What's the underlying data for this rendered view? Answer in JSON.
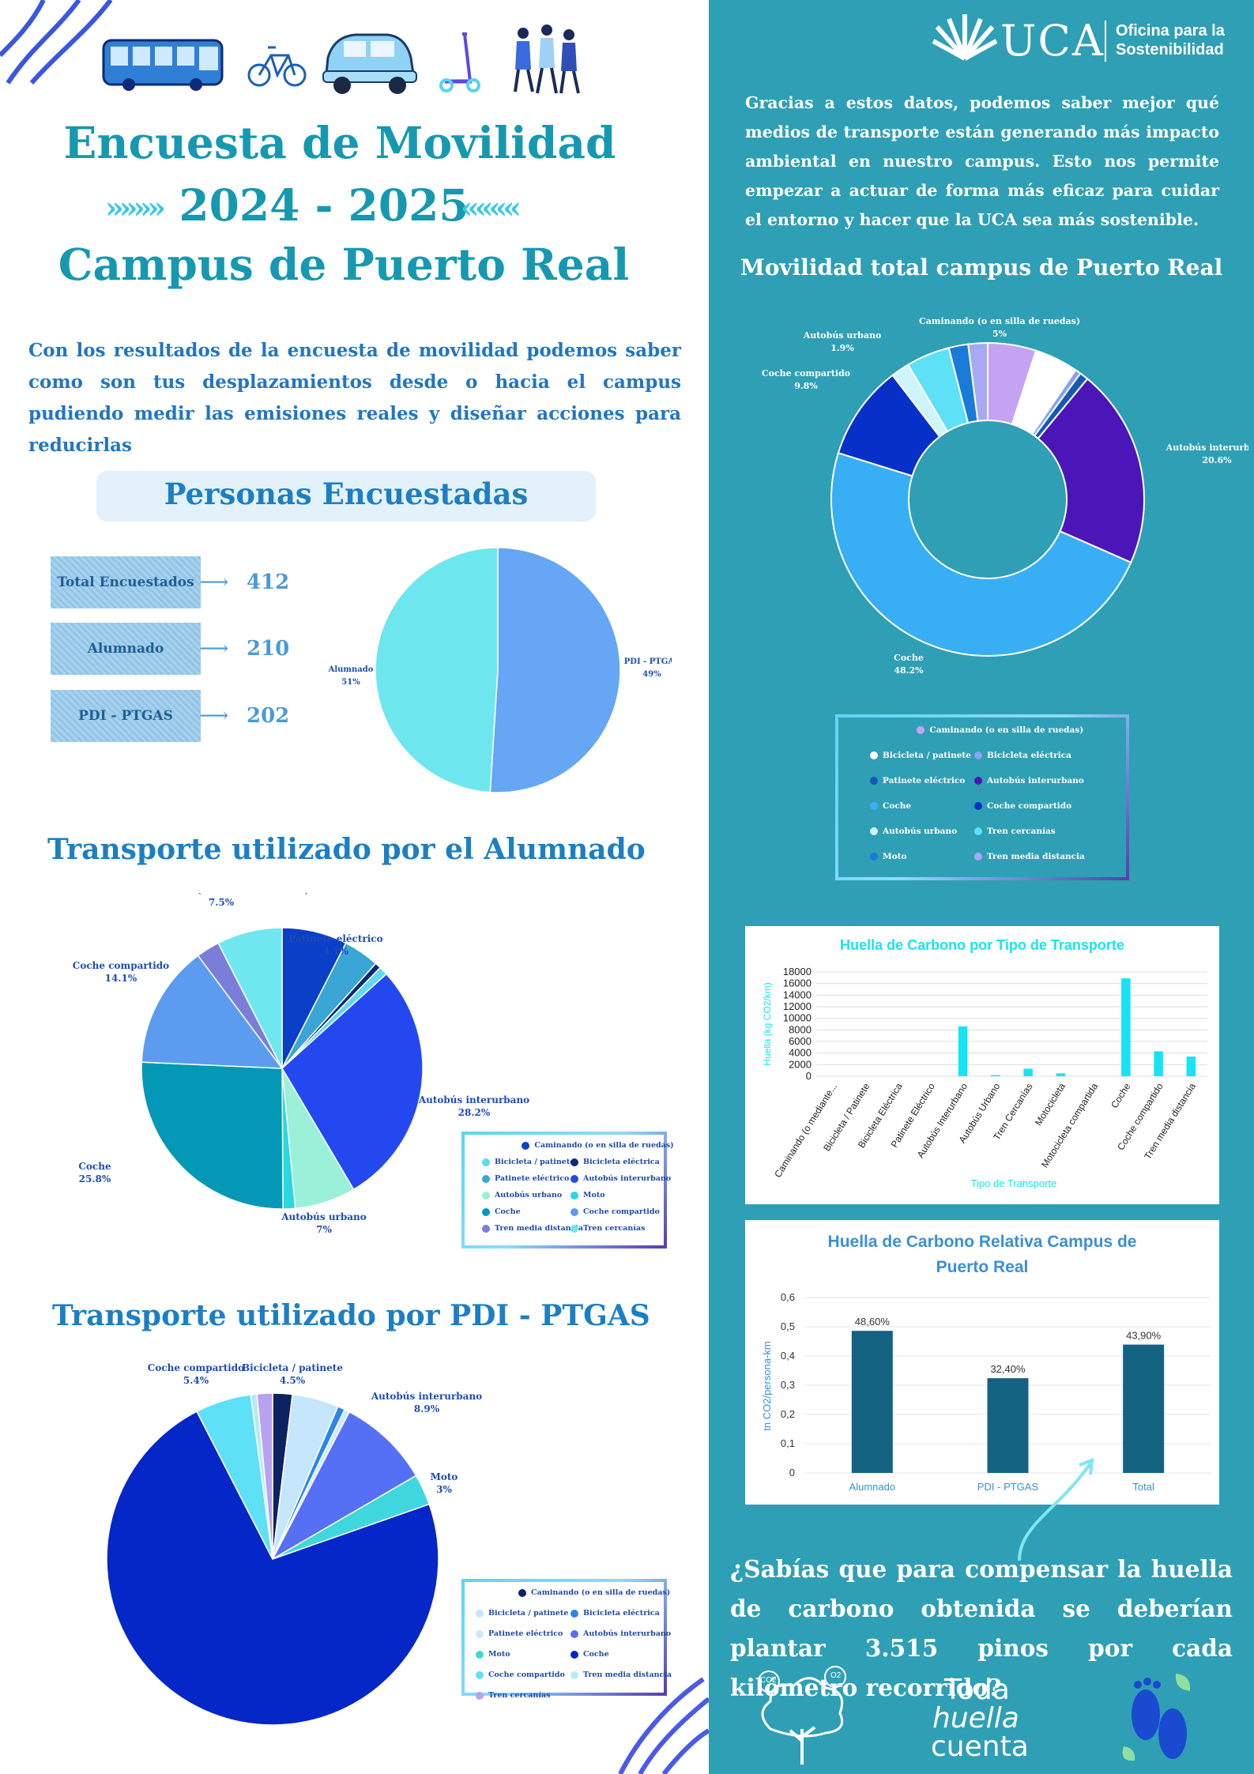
{
  "header": {
    "title_line1": "Encuesta de Movilidad",
    "title_line2": "2024 - 2025",
    "title_line3": "Campus de Puerto Real",
    "intro": "Con los resultados de la encuesta de movilidad podemos saber como son tus desplazamientos desde o hacia el campus pudiendo medir las emisiones reales y diseñar acciones para reducirlas",
    "icons": [
      "bus-icon",
      "bicycle-icon",
      "car-icon",
      "scooter-icon",
      "walking-people-icon"
    ]
  },
  "brand": {
    "logo_text": "UCA",
    "office_line1": "Oficina para la",
    "office_line2": "Sostenibilidad"
  },
  "right_intro": "Gracias a estos datos, podemos saber mejor qué medios de transporte están generando más impacto ambiental en nuestro campus. Esto nos permite empezar a actuar de forma más eficaz para cuidar el entorno y hacer que la UCA sea más sostenible.",
  "respondents": {
    "title": "Personas Encuestadas",
    "items": [
      {
        "label": "Total Encuestados",
        "value": "412"
      },
      {
        "label": "Alumnado",
        "value": "210"
      },
      {
        "label": "PDI - PTGAS",
        "value": "202"
      }
    ]
  },
  "sections": {
    "students_title": "Transporte utilizado por el Alumnado",
    "staff_title": "Transporte utilizado por PDI - PTGAS",
    "total_title": "Movilidad total campus de Puerto Real"
  },
  "closing": {
    "question": "¿Sabías que para compensar la huella de carbono obtenida se deberían plantar 3.515 pinos por cada kilómetro recorrido?",
    "slogan_line1": "Toda",
    "slogan_line2": "huella",
    "slogan_line3": "cuenta",
    "co2_label": "CO2",
    "o2_label": "O2"
  },
  "colors": {
    "right_bg": "#2f9fb5",
    "title_teal": "#1699b0",
    "heading_blue": "#1c7fc4"
  },
  "chart_data": [
    {
      "id": "respondents_pie",
      "type": "pie",
      "slices": [
        {
          "name": "Alumnado",
          "value": 51,
          "label": "51%",
          "color": "#66a6f5"
        },
        {
          "name": "PDI - PTGAS",
          "value": 49,
          "label": "49%",
          "color": "#6ee6ee"
        }
      ]
    },
    {
      "id": "students_pie",
      "type": "pie",
      "slices": [
        {
          "name": "Caminando (o en silla de ruedas)",
          "value": 7.5,
          "label": "7.5%",
          "color": "#0a3fc8",
          "labeled": true
        },
        {
          "name": "Patinete eléctrico",
          "value": 4.1,
          "label": "4.1%",
          "color": "#3aa6d6",
          "labeled": true
        },
        {
          "name": "Bicicleta eléctrica",
          "value": 0.7,
          "color": "#0d2a78"
        },
        {
          "name": "Bicicleta / patinete",
          "value": 1.0,
          "color": "#5fd8f5"
        },
        {
          "name": "Autobús interurbano",
          "value": 28.2,
          "label": "28.2%",
          "color": "#2448f0",
          "labeled": true
        },
        {
          "name": "Autobús urbano",
          "value": 7,
          "label": "7%",
          "color": "#9af0d8",
          "labeled": true
        },
        {
          "name": "Moto",
          "value": 1.4,
          "color": "#2ad8e0"
        },
        {
          "name": "Coche",
          "value": 25.8,
          "label": "25.8%",
          "color": "#0399b6",
          "labeled": true
        },
        {
          "name": "Coche compartido",
          "value": 14.1,
          "label": "14.1%",
          "color": "#5b9cf0",
          "labeled": true
        },
        {
          "name": "Tren media distancia",
          "value": 2.7,
          "color": "#7a7ed8"
        },
        {
          "name": "Tren cercanías",
          "value": 7.5,
          "color": "#6ee8ee"
        }
      ],
      "legend": [
        "Caminando (o en silla de ruedas)",
        "Bicicleta / patinete",
        "Bicicleta eléctrica",
        "Patinete eléctrico",
        "Autobús interurbano",
        "Autobús urbano",
        "Moto",
        "Coche",
        "Coche compartido",
        "Tren media distancia",
        "Tren cercanías"
      ]
    },
    {
      "id": "staff_pie",
      "type": "pie",
      "slices": [
        {
          "name": "Caminando (o en silla de ruedas)",
          "value": 1.9,
          "color": "#0d2260"
        },
        {
          "name": "Bicicleta / patinete",
          "value": 4.5,
          "label": "4.5%",
          "color": "#c6e6fb",
          "labeled": true
        },
        {
          "name": "Bicicleta eléctrica",
          "value": 0.7,
          "color": "#2c86e8"
        },
        {
          "name": "Patinete eléctrico",
          "value": 0.5,
          "color": "#cfe8fb"
        },
        {
          "name": "Autobús interurbano",
          "value": 8.9,
          "label": "8.9%",
          "color": "#5670f5",
          "labeled": true
        },
        {
          "name": "Moto",
          "value": 3,
          "label": "3%",
          "color": "#3fd7de",
          "labeled": true
        },
        {
          "name": "Coche",
          "value": 72.3,
          "label": "72.3%",
          "color": "#0527c8",
          "labeled": true
        },
        {
          "name": "Coche compartido",
          "value": 5.4,
          "label": "5.4%",
          "color": "#5ee0f7",
          "labeled": true
        },
        {
          "name": "Tren media distancia",
          "value": 0.6,
          "color": "#b7ecf7"
        },
        {
          "name": "Tren cercanías",
          "value": 1.5,
          "color": "#b9a2ef"
        }
      ],
      "legend": [
        "Caminando (o en silla de ruedas)",
        "Bicicleta / patinete",
        "Bicicleta eléctrica",
        "Patinete eléctrico",
        "Autobús interurbano",
        "Moto",
        "Coche",
        "Coche compartido",
        "Tren media distancia",
        "Tren cercanías"
      ]
    },
    {
      "id": "total_donut",
      "type": "pie",
      "slices": [
        {
          "name": "Caminando (o en silla de ruedas)",
          "value": 5,
          "label": "5%",
          "color": "#c4a4f2",
          "labeled": true
        },
        {
          "name": "Bicicleta / patinete",
          "value": 4.5,
          "color": "#ffffff"
        },
        {
          "name": "Bicicleta eléctrica",
          "value": 0.6,
          "color": "#8aa2f0"
        },
        {
          "name": "Patinete eléctrico",
          "value": 0.9,
          "color": "#1558b8"
        },
        {
          "name": "Autobús interurbano",
          "value": 20.6,
          "label": "20.6%",
          "color": "#4a16b8",
          "labeled": true
        },
        {
          "name": "Coche",
          "value": 48.2,
          "label": "48.2%",
          "color": "#38aef5",
          "labeled": true
        },
        {
          "name": "Coche compartido",
          "value": 9.8,
          "label": "9.8%",
          "color": "#0730c8",
          "labeled": true
        },
        {
          "name": "Autobús urbano",
          "value": 1.9,
          "label": "1.9%",
          "color": "#cdf5fb",
          "labeled": true
        },
        {
          "name": "Tren cercanías",
          "value": 4.5,
          "color": "#5ee0f7"
        },
        {
          "name": "Moto",
          "value": 2.0,
          "color": "#1a7ad8"
        },
        {
          "name": "Tren media distancia",
          "value": 2.0,
          "color": "#a8a8f5"
        }
      ],
      "legend": [
        "Caminando (o en silla de ruedas)",
        "Bicicleta / patinete",
        "Bicicleta eléctrica",
        "Patinete eléctrico",
        "Autobús interurbano",
        "Coche",
        "Coche compartido",
        "Autobús urbano",
        "Tren cercanías",
        "Moto",
        "Tren media distancia"
      ]
    },
    {
      "id": "footprint_bar",
      "type": "bar",
      "title": "Huella de Carbono por Tipo de Transporte",
      "xlabel": "Tipo de Transporte",
      "ylabel": "Huella (kg CO2/km)",
      "ylim": [
        0,
        18000
      ],
      "yticks": [
        0,
        2000,
        4000,
        6000,
        8000,
        10000,
        12000,
        14000,
        16000,
        18000
      ],
      "categories": [
        "Caminando (o mediante...",
        "Bicicleta / Patinete",
        "Bicicleta Eléctrica",
        "Patinete Eléctrico",
        "Autobús Interurbano",
        "Autobús Urbano",
        "Tren Cercanías",
        "Motocicleta",
        "Motocicleta compartida",
        "Coche",
        "Coche compartido",
        "Tren media distancia"
      ],
      "values": [
        0,
        0,
        0,
        0,
        8600,
        200,
        1300,
        500,
        0,
        16900,
        4300,
        3400
      ],
      "color": "#17e3f5"
    },
    {
      "id": "relative_bar",
      "type": "bar",
      "title": "Huella de Carbono Relativa Campus de Puerto Real",
      "ylabel": "tn CO2/persona-km",
      "ylim": [
        0,
        0.6
      ],
      "yticks": [
        "0",
        "0,1",
        "0,2",
        "0,3",
        "0,4",
        "0,5",
        "0,6"
      ],
      "categories": [
        "Alumnado",
        "PDI - PTGAS",
        "Total"
      ],
      "values": [
        0.486,
        0.324,
        0.439
      ],
      "labels": [
        "48,60%",
        "32,40%",
        "43,90%"
      ],
      "color": "#136282"
    }
  ]
}
